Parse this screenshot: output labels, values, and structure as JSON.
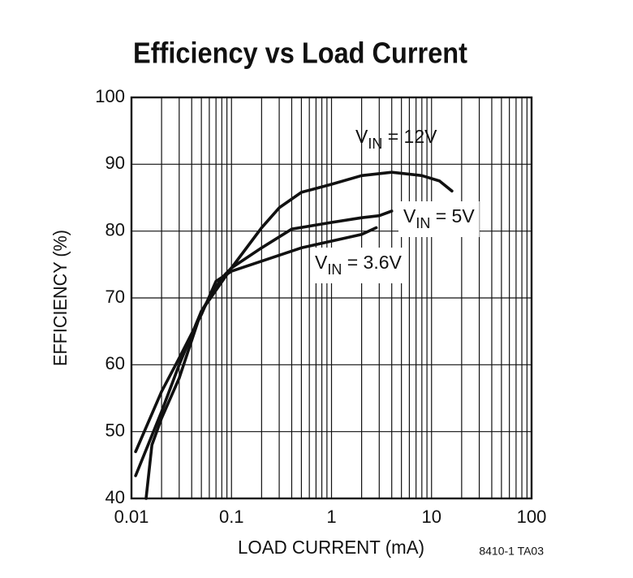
{
  "chart_data": {
    "type": "line",
    "title": "Efficiency vs Load Current",
    "x_label": "LOAD CURRENT (mA)",
    "y_label": "EFFICIENCY (%)",
    "note": "8410-1 TA03",
    "x_scale": "log",
    "xlim": [
      0.01,
      100
    ],
    "xticks": [
      0.01,
      0.1,
      1,
      10,
      100
    ],
    "x_minor_ticks": [
      0.02,
      0.03,
      0.04,
      0.05,
      0.06,
      0.07,
      0.08,
      0.09,
      0.2,
      0.3,
      0.4,
      0.5,
      0.6,
      0.7,
      0.8,
      0.9,
      2,
      3,
      4,
      5,
      6,
      7,
      8,
      9,
      20,
      30,
      40,
      50,
      60,
      70,
      80,
      90
    ],
    "ylim": [
      40,
      100
    ],
    "yticks": [
      40,
      50,
      60,
      70,
      80,
      90,
      100
    ],
    "grid": true,
    "color": "#111111",
    "series": [
      {
        "label": {
          "main": "V",
          "sub": "IN",
          "rest": " = 12V"
        },
        "x": [
          0.014,
          0.016,
          0.02,
          0.03,
          0.05,
          0.1,
          0.2,
          0.3,
          0.5,
          1,
          2,
          4,
          8,
          12,
          16
        ],
        "values": [
          40,
          48,
          52,
          58,
          68,
          74.5,
          80.5,
          83.5,
          85.8,
          87,
          88.3,
          88.8,
          88.3,
          87.5,
          86
        ]
      },
      {
        "label": {
          "main": "V",
          "sub": "IN",
          "rest": " = 5V"
        },
        "x": [
          0.011,
          0.02,
          0.03,
          0.05,
          0.08,
          0.1,
          0.2,
          0.4,
          1,
          2,
          3,
          4
        ],
        "values": [
          43.4,
          53,
          60,
          68,
          73,
          74.5,
          77.5,
          80.3,
          81.3,
          82,
          82.3,
          83
        ]
      },
      {
        "label": {
          "main": "V",
          "sub": "IN",
          "rest": " = 3.6V"
        },
        "x": [
          0.011,
          0.02,
          0.03,
          0.05,
          0.07,
          0.1,
          0.2,
          0.5,
          1,
          2,
          2.8
        ],
        "values": [
          47,
          56,
          61,
          67.5,
          72.5,
          74,
          75.5,
          77.5,
          78.5,
          79.5,
          80.5
        ]
      }
    ]
  }
}
